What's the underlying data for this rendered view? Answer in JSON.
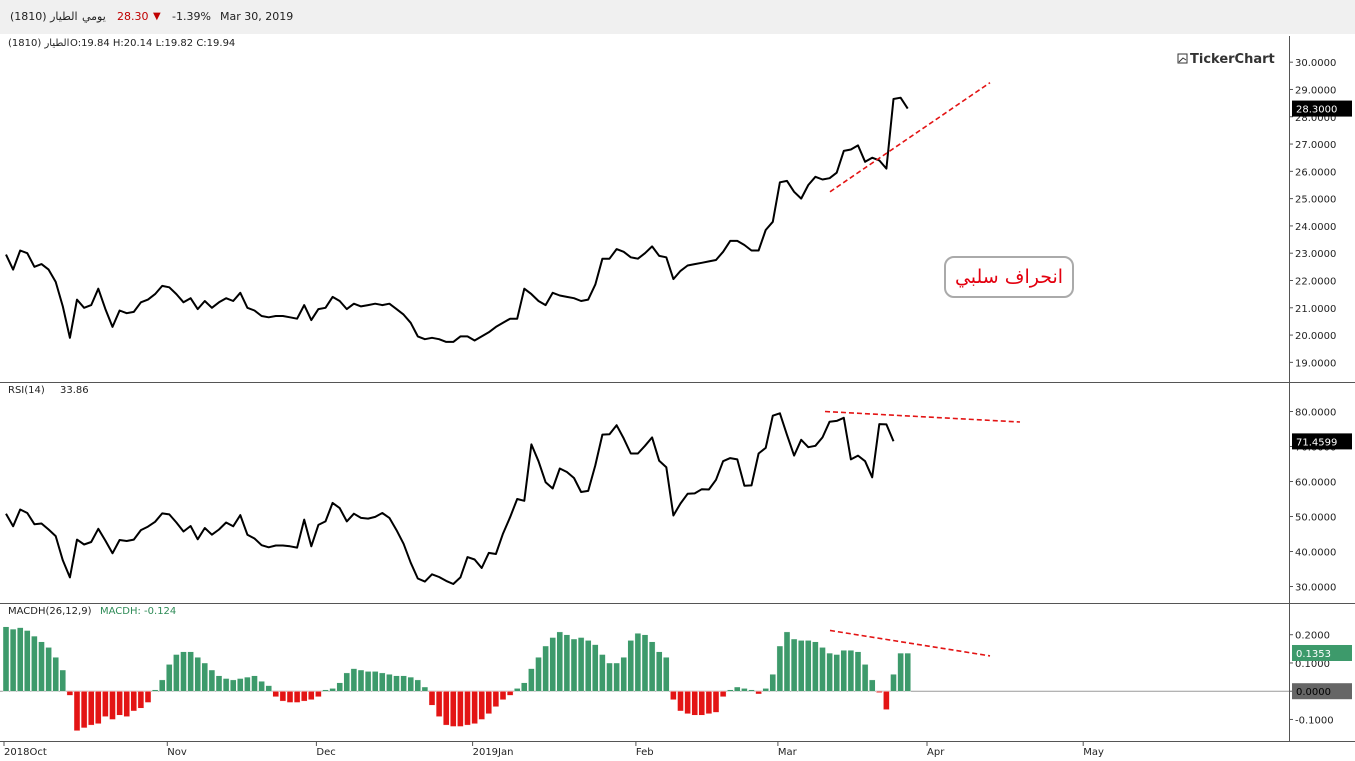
{
  "header": {
    "symbol": "الطيار (1810)",
    "period": "يومي",
    "last": "28.30",
    "change_arrow": "▼",
    "change_pct": "-1.39%",
    "date": "Mar 30, 2019"
  },
  "colors": {
    "up": "#2e8b57",
    "down": "#e3000f",
    "macd_pos": "#3d9a6b",
    "macd_neg": "#e31414",
    "trend": "#e31414"
  },
  "brand": {
    "icon": "chart-icon",
    "name": "TickerChart"
  },
  "annotation": "انحراف سلبي",
  "chart_data": [
    {
      "type": "line",
      "title": "الطيار (1810)",
      "ohlc_text": "O:19.84 H:20.14 L:19.82 C:19.94",
      "ylim": [
        18.5,
        30.3
      ],
      "yticks": [
        "30.0000",
        "29.0000",
        "28.0000",
        "27.0000",
        "26.0000",
        "25.0000",
        "24.0000",
        "23.0000",
        "22.0000",
        "21.0000",
        "20.0000",
        "19.0000"
      ],
      "tick_values": [
        30,
        29,
        28,
        27,
        26,
        25,
        24,
        23,
        22,
        21,
        20,
        19
      ],
      "last_label": "28.3000",
      "last_value": 28.3,
      "trendline": [
        [
          830,
          25.25
        ],
        [
          990,
          29.25
        ]
      ],
      "values": [
        22.95,
        22.4,
        23.1,
        23.0,
        22.5,
        22.6,
        22.4,
        21.95,
        21.05,
        19.9,
        21.3,
        21.0,
        21.1,
        21.7,
        20.95,
        20.3,
        20.9,
        20.8,
        20.85,
        21.2,
        21.3,
        21.5,
        21.8,
        21.75,
        21.5,
        21.2,
        21.35,
        20.95,
        21.25,
        21.0,
        21.2,
        21.35,
        21.25,
        21.55,
        21.0,
        20.9,
        20.7,
        20.65,
        20.7,
        20.7,
        20.65,
        20.6,
        21.1,
        20.55,
        20.95,
        21.0,
        21.4,
        21.25,
        20.95,
        21.15,
        21.05,
        21.1,
        21.15,
        21.1,
        21.15,
        20.95,
        20.75,
        20.45,
        19.95,
        19.85,
        19.9,
        19.85,
        19.75,
        19.75,
        19.95,
        19.95,
        19.8,
        19.95,
        20.1,
        20.3,
        20.45,
        20.6,
        20.6,
        21.7,
        21.5,
        21.25,
        21.1,
        21.55,
        21.45,
        21.4,
        21.35,
        21.25,
        21.3,
        21.85,
        22.8,
        22.8,
        23.15,
        23.05,
        22.85,
        22.8,
        23.0,
        23.25,
        22.9,
        22.85,
        22.05,
        22.35,
        22.55,
        22.6,
        22.65,
        22.7,
        22.75,
        23.05,
        23.45,
        23.45,
        23.3,
        23.1,
        23.1,
        23.85,
        24.15,
        25.6,
        25.65,
        25.25,
        25.0,
        25.5,
        25.8,
        25.7,
        25.75,
        25.95,
        26.75,
        26.8,
        26.95,
        26.35,
        26.5,
        26.4,
        26.1,
        28.65,
        28.7,
        28.3
      ]
    },
    {
      "type": "line",
      "title": "RSI(14)",
      "value_text": "33.86",
      "ylim": [
        27,
        83
      ],
      "yticks": [
        "80.0000",
        "70.0000",
        "60.0000",
        "50.0000",
        "40.0000",
        "30.0000"
      ],
      "tick_values": [
        80,
        70,
        60,
        50,
        40,
        30
      ],
      "last_label": "71.4599",
      "last_value": 71.46,
      "trendline": [
        [
          825,
          80.0
        ],
        [
          1020,
          77.0
        ]
      ],
      "values": [
        50.8,
        47.2,
        52.0,
        51.0,
        47.8,
        48.0,
        46.3,
        44.4,
        37.5,
        32.6,
        43.4,
        42.0,
        42.7,
        46.5,
        43.1,
        39.5,
        43.3,
        43.0,
        43.4,
        46.1,
        47.1,
        48.5,
        50.9,
        50.6,
        48.3,
        45.7,
        47.3,
        43.5,
        46.7,
        44.8,
        46.3,
        48.3,
        47.2,
        50.4,
        44.8,
        43.7,
        41.8,
        41.2,
        41.7,
        41.7,
        41.5,
        41.1,
        49.1,
        41.5,
        47.6,
        48.6,
        53.9,
        52.4,
        48.6,
        50.8,
        49.6,
        49.4,
        49.9,
        51.0,
        49.6,
        46.1,
        42.2,
        36.8,
        32.3,
        31.4,
        33.5,
        32.7,
        31.6,
        30.7,
        32.6,
        38.4,
        37.7,
        35.3,
        39.6,
        39.3,
        45.1,
        49.8,
        55.0,
        54.5,
        70.6,
        65.8,
        59.8,
        58.0,
        63.7,
        62.7,
        61.0,
        57.0,
        57.3,
        64.6,
        73.4,
        73.5,
        76.1,
        72.3,
        68.0,
        68.0,
        70.2,
        72.6,
        65.9,
        64.1,
        50.3,
        53.7,
        56.5,
        56.6,
        57.8,
        57.7,
        60.5,
        65.8,
        66.7,
        66.3,
        58.8,
        58.9,
        68.0,
        69.6,
        78.8,
        79.5,
        73.3,
        67.4,
        71.9,
        69.8,
        70.2,
        72.6,
        77.1,
        77.3,
        78.2,
        66.3,
        67.4,
        65.8,
        61.2,
        76.4,
        76.3,
        71.5
      ]
    },
    {
      "type": "bar",
      "title": "MACDH(26,12,9)",
      "value_text": "MACDH: -0.124",
      "ylim": [
        -0.155,
        0.245
      ],
      "yticks": [
        "0.2000",
        "0.1000",
        "0.0000",
        "-0.1000"
      ],
      "tick_values": [
        0.2,
        0.1,
        0.0,
        -0.1
      ],
      "last_label": "0.1353",
      "last_value": 0.1353,
      "zero_label": "0.0000",
      "trendline": [
        [
          830,
          0.215
        ],
        [
          990,
          0.125
        ]
      ],
      "values": [
        0.228,
        0.22,
        0.225,
        0.215,
        0.195,
        0.175,
        0.155,
        0.12,
        0.075,
        -0.015,
        -0.14,
        -0.13,
        -0.12,
        -0.115,
        -0.09,
        -0.1,
        -0.085,
        -0.09,
        -0.07,
        -0.06,
        -0.04,
        0.005,
        0.04,
        0.095,
        0.13,
        0.14,
        0.14,
        0.12,
        0.1,
        0.075,
        0.055,
        0.045,
        0.04,
        0.045,
        0.05,
        0.055,
        0.035,
        0.02,
        -0.02,
        -0.035,
        -0.04,
        -0.04,
        -0.035,
        -0.03,
        -0.02,
        0.005,
        0.01,
        0.03,
        0.065,
        0.08,
        0.075,
        0.07,
        0.07,
        0.065,
        0.06,
        0.055,
        0.055,
        0.05,
        0.04,
        0.015,
        -0.05,
        -0.09,
        -0.12,
        -0.125,
        -0.125,
        -0.12,
        -0.115,
        -0.1,
        -0.08,
        -0.055,
        -0.03,
        -0.015,
        0.01,
        0.03,
        0.08,
        0.12,
        0.16,
        0.19,
        0.21,
        0.2,
        0.185,
        0.19,
        0.18,
        0.165,
        0.13,
        0.1,
        0.1,
        0.12,
        0.18,
        0.205,
        0.2,
        0.175,
        0.14,
        0.12,
        -0.03,
        -0.07,
        -0.08,
        -0.085,
        -0.085,
        -0.08,
        -0.075,
        -0.02,
        0.005,
        0.015,
        0.01,
        0.005,
        -0.01,
        0.01,
        0.06,
        0.16,
        0.21,
        0.185,
        0.18,
        0.18,
        0.175,
        0.155,
        0.135,
        0.13,
        0.145,
        0.145,
        0.14,
        0.095,
        0.04,
        -0.005,
        -0.065,
        0.06,
        0.135,
        0.135
      ]
    }
  ],
  "x_axis": {
    "labels": [
      "2018Oct",
      "Nov",
      "Dec",
      "2019Jan",
      "Feb",
      "Mar",
      "Apr",
      "May"
    ],
    "first_date": "2018-10-01",
    "label_dates": [
      "2018-10-01",
      "2018-11-01",
      "2018-12-01",
      "2019-01-01",
      "2019-02-01",
      "2019-03-01",
      "2019-04-01",
      "2019-05-01"
    ]
  }
}
